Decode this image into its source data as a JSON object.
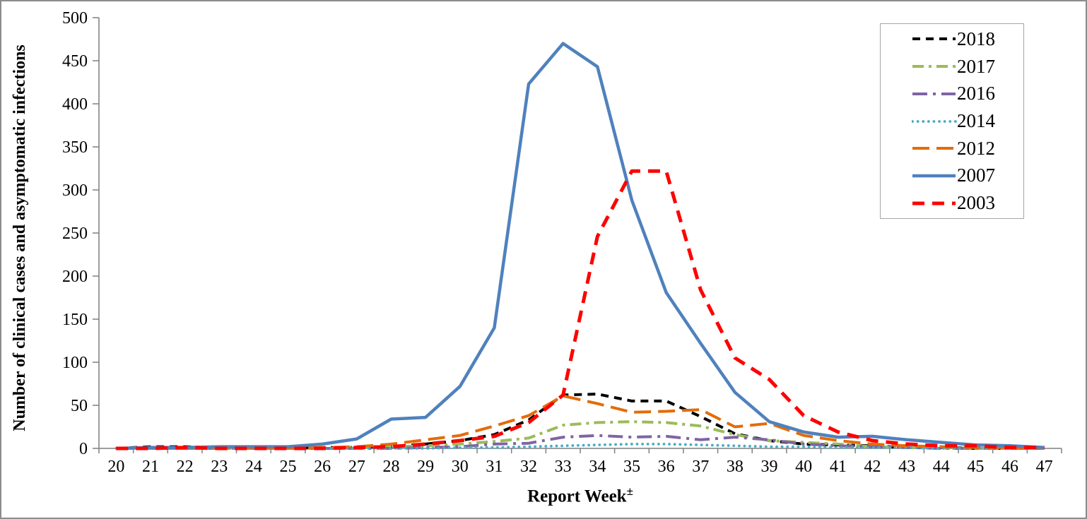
{
  "chart_data": {
    "type": "line",
    "title": "",
    "xlabel": "Report Week",
    "xlabel_superscript": "±",
    "ylabel": "Number of clinical cases and asymptomatic infections",
    "categories": [
      "20",
      "21",
      "22",
      "23",
      "24",
      "25",
      "26",
      "27",
      "28",
      "29",
      "30",
      "31",
      "32",
      "33",
      "34",
      "35",
      "36",
      "37",
      "38",
      "39",
      "40",
      "41",
      "42",
      "43",
      "44",
      "45",
      "46",
      "47"
    ],
    "yticks": [
      0,
      50,
      100,
      150,
      200,
      250,
      300,
      350,
      400,
      450,
      500
    ],
    "ylim": [
      0,
      500
    ],
    "grid": false,
    "legend_position": "top-right",
    "axis_color": "#7f7f7f",
    "series": [
      {
        "name": "2018",
        "color": "#000000",
        "style": "dashed",
        "values": [
          0,
          2,
          2,
          1,
          0,
          0,
          1,
          1,
          2,
          5,
          9,
          16,
          33,
          62,
          63,
          55,
          55,
          37,
          17,
          9,
          5,
          4,
          3,
          1,
          1,
          0,
          0,
          0
        ]
      },
      {
        "name": "2017",
        "color": "#9bbb59",
        "style": "dash-dot",
        "values": [
          0,
          0,
          0,
          0,
          0,
          0,
          0,
          1,
          2,
          3,
          5,
          8,
          12,
          27,
          30,
          31,
          30,
          26,
          16,
          9,
          7,
          5,
          2,
          1,
          0,
          0,
          0,
          0
        ]
      },
      {
        "name": "2016",
        "color": "#8064a2",
        "style": "long-dash-dot",
        "values": [
          0,
          0,
          0,
          0,
          0,
          0,
          0,
          0,
          0,
          1,
          2,
          5,
          6,
          13,
          15,
          13,
          14,
          10,
          13,
          10,
          5,
          3,
          2,
          1,
          0,
          0,
          0,
          0
        ]
      },
      {
        "name": "2014",
        "color": "#4bacc6",
        "style": "dotted",
        "values": [
          0,
          0,
          0,
          0,
          0,
          0,
          0,
          0,
          0,
          0,
          1,
          1,
          2,
          3,
          4,
          5,
          5,
          4,
          3,
          2,
          2,
          1,
          1,
          1,
          0,
          0,
          0,
          0
        ]
      },
      {
        "name": "2012",
        "color": "#e36c09",
        "style": "long-dash",
        "values": [
          0,
          0,
          0,
          0,
          0,
          0,
          1,
          2,
          5,
          10,
          15,
          26,
          38,
          61,
          52,
          42,
          43,
          45,
          25,
          29,
          15,
          9,
          5,
          3,
          2,
          1,
          1,
          0
        ]
      },
      {
        "name": "2007",
        "color": "#4f81bd",
        "style": "solid",
        "values": [
          0,
          1,
          1,
          2,
          2,
          2,
          5,
          11,
          34,
          36,
          72,
          140,
          423,
          470,
          443,
          288,
          181,
          122,
          65,
          31,
          19,
          13,
          14,
          10,
          7,
          4,
          3,
          1
        ]
      },
      {
        "name": "2003",
        "color": "#ff0000",
        "style": "dashed-bold",
        "values": [
          0,
          0,
          1,
          0,
          0,
          0,
          0,
          1,
          2,
          5,
          9,
          14,
          30,
          62,
          246,
          322,
          322,
          184,
          105,
          80,
          38,
          19,
          9,
          5,
          3,
          3,
          1,
          1
        ]
      }
    ]
  }
}
